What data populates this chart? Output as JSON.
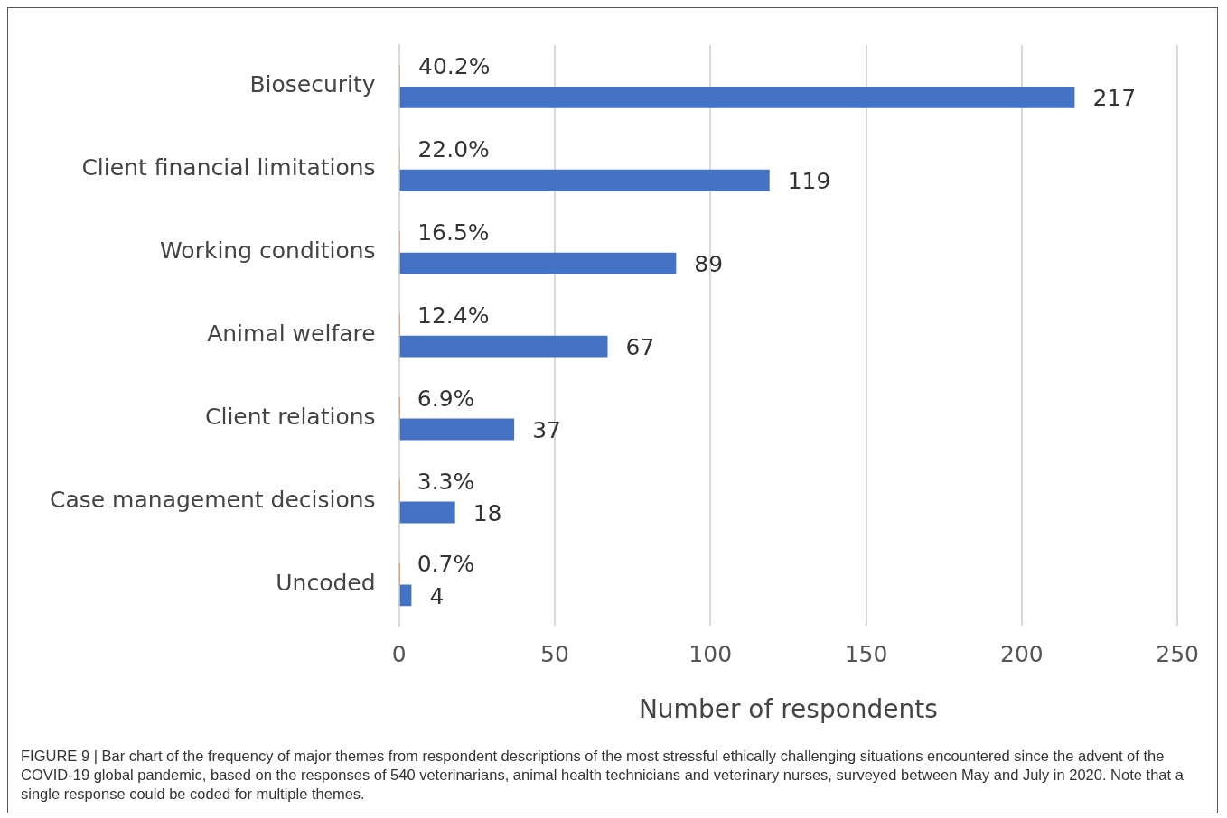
{
  "chart_data": {
    "type": "bar",
    "orientation": "horizontal",
    "categories": [
      "Biosecurity",
      "Client financial limitations",
      "Working conditions",
      "Animal welfare",
      "Client relations",
      "Case management decisions",
      "Uncoded"
    ],
    "series": [
      {
        "color": "#ed7d31",
        "values": [
          0.402,
          0.22,
          0.165,
          0.124,
          0.069,
          0.033,
          0.007
        ],
        "value_labels": [
          "40.2%",
          "22.0%",
          "16.5%",
          "12.4%",
          "6.9%",
          "3.3%",
          "0.7%"
        ]
      },
      {
        "color": "#4472c4",
        "values": [
          217,
          119,
          89,
          67,
          37,
          18,
          4
        ],
        "value_labels": [
          "217",
          "119",
          "89",
          "67",
          "37",
          "18",
          "4"
        ]
      }
    ],
    "xlabel": "Number of respondents",
    "xlim": [
      0,
      250
    ],
    "xticks": [
      0,
      50,
      100,
      150,
      200,
      250
    ],
    "grid": "x",
    "legend": false,
    "annotations": [
      "FIGURE 9 | Bar chart of the frequency of major themes from respondent descriptions of the most stressful ethically challenging situations encountered since the advent of the COVID-19 global pandemic, based on the responses of 540 veterinarians, animal health technicians and veterinary nurses, surveyed between May and July in 2020. Note that a single response could be coded for multiple themes."
    ]
  }
}
